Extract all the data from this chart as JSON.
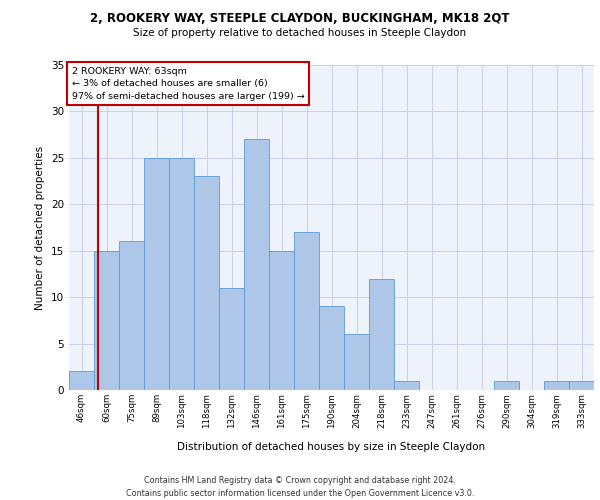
{
  "title1": "2, ROOKERY WAY, STEEPLE CLAYDON, BUCKINGHAM, MK18 2QT",
  "title2": "Size of property relative to detached houses in Steeple Claydon",
  "xlabel": "Distribution of detached houses by size in Steeple Claydon",
  "ylabel": "Number of detached properties",
  "categories": [
    "46sqm",
    "60sqm",
    "75sqm",
    "89sqm",
    "103sqm",
    "118sqm",
    "132sqm",
    "146sqm",
    "161sqm",
    "175sqm",
    "190sqm",
    "204sqm",
    "218sqm",
    "233sqm",
    "247sqm",
    "261sqm",
    "276sqm",
    "290sqm",
    "304sqm",
    "319sqm",
    "333sqm"
  ],
  "values": [
    2,
    15,
    16,
    25,
    25,
    23,
    11,
    27,
    15,
    17,
    9,
    6,
    12,
    1,
    0,
    0,
    0,
    1,
    0,
    1,
    1
  ],
  "bar_color": "#aec6e8",
  "bar_edge_color": "#5b9bd5",
  "marker_line_color": "#c00000",
  "annotation_box_edge": "#c00000",
  "marker_label_line1": "2 ROOKERY WAY: 63sqm",
  "marker_label_line2": "← 3% of detached houses are smaller (6)",
  "marker_label_line3": "97% of semi-detached houses are larger (199) →",
  "ylim": [
    0,
    35
  ],
  "yticks": [
    0,
    5,
    10,
    15,
    20,
    25,
    30,
    35
  ],
  "footer": "Contains HM Land Registry data © Crown copyright and database right 2024.\nContains public sector information licensed under the Open Government Licence v3.0.",
  "bg_color": "#eef2fb",
  "grid_color": "#c8d0e8"
}
